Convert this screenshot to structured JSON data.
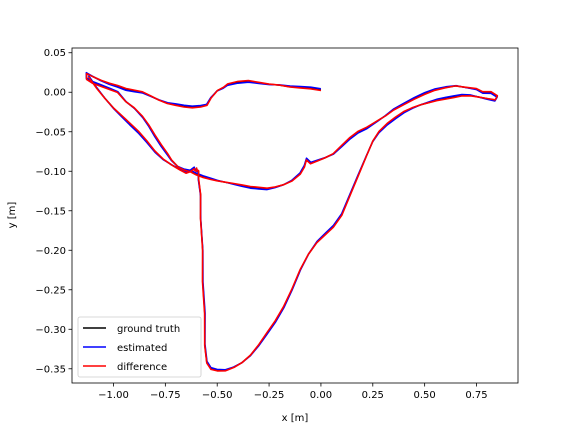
{
  "chart_data": {
    "type": "line",
    "xlabel": "x [m]",
    "ylabel": "y [m]",
    "xlim": [
      -1.2,
      0.95
    ],
    "ylim": [
      -0.368,
      0.056
    ],
    "xticks": [
      -1.0,
      -0.75,
      -0.5,
      -0.25,
      0.0,
      0.25,
      0.5,
      0.75
    ],
    "xtick_labels": [
      "−1.00",
      "−0.75",
      "−0.50",
      "−0.25",
      "0.00",
      "0.25",
      "0.50",
      "0.75"
    ],
    "yticks": [
      0.05,
      0.0,
      -0.05,
      -0.1,
      -0.15,
      -0.2,
      -0.25,
      -0.3,
      -0.35
    ],
    "ytick_labels": [
      "0.05",
      "0.00",
      "−0.05",
      "−0.10",
      "−0.15",
      "−0.20",
      "−0.25",
      "−0.30",
      "−0.35"
    ],
    "grid": false,
    "legend_position": "lower-left",
    "series": [
      {
        "name": "ground truth",
        "color": "#000000"
      },
      {
        "name": "estimated",
        "color": "#0000ff"
      },
      {
        "name": "difference",
        "color": "#ff0000"
      }
    ],
    "trajectory": {
      "x": [
        0.0,
        -0.05,
        -0.1,
        -0.15,
        -0.2,
        -0.25,
        -0.3,
        -0.35,
        -0.4,
        -0.45,
        -0.47,
        -0.5,
        -0.53,
        -0.55,
        -0.58,
        -0.62,
        -0.66,
        -0.7,
        -0.74,
        -0.78,
        -0.82,
        -0.86,
        -0.9,
        -0.94,
        -0.98,
        -1.02,
        -1.06,
        -1.1,
        -1.13,
        -1.13,
        -1.1,
        -1.06,
        -1.02,
        -0.98,
        -0.94,
        -0.9,
        -0.86,
        -0.83,
        -0.8,
        -0.77,
        -0.74,
        -0.72,
        -0.69,
        -0.66,
        -0.63,
        -0.6,
        -0.57,
        -0.53,
        -0.5,
        -0.46,
        -0.42,
        -0.38,
        -0.34,
        -0.3,
        -0.26,
        -0.22,
        -0.18,
        -0.14,
        -0.1,
        -0.08,
        -0.07,
        -0.05,
        -0.02,
        0.02,
        0.06,
        0.1,
        0.14,
        0.18,
        0.22,
        0.25,
        0.28,
        0.31,
        0.35,
        0.4,
        0.45,
        0.5,
        0.55,
        0.6,
        0.65,
        0.7,
        0.75,
        0.78,
        0.82,
        0.85,
        0.84,
        0.8,
        0.76,
        0.72,
        0.68,
        0.64,
        0.6,
        0.56,
        0.52,
        0.48,
        0.44,
        0.4,
        0.36,
        0.32,
        0.28,
        0.25,
        0.22,
        0.18,
        0.14,
        0.1,
        0.06,
        0.02,
        -0.02,
        -0.06,
        -0.1,
        -0.14,
        -0.18,
        -0.22,
        -0.26,
        -0.3,
        -0.34,
        -0.38,
        -0.42,
        -0.46,
        -0.5,
        -0.53,
        -0.55,
        -0.56,
        -0.56,
        -0.57,
        -0.57,
        -0.58,
        -0.58,
        -0.59,
        -0.59,
        -0.6,
        -0.6,
        -0.6,
        -0.61,
        -0.61,
        -0.62,
        -0.63,
        -0.65,
        -0.68,
        -0.72,
        -0.76,
        -0.8,
        -0.84,
        -0.88,
        -0.92,
        -0.96,
        -1.0,
        -1.04,
        -1.08,
        -1.12
      ],
      "y": [
        0.003,
        0.005,
        0.006,
        0.007,
        0.009,
        0.01,
        0.012,
        0.014,
        0.013,
        0.01,
        0.006,
        0.002,
        -0.007,
        -0.016,
        -0.018,
        -0.019,
        -0.018,
        -0.016,
        -0.014,
        -0.01,
        -0.005,
        0.0,
        0.002,
        0.004,
        0.008,
        0.011,
        0.015,
        0.02,
        0.024,
        0.017,
        0.012,
        0.008,
        0.004,
        0.0,
        -0.012,
        -0.02,
        -0.031,
        -0.042,
        -0.055,
        -0.067,
        -0.078,
        -0.086,
        -0.094,
        -0.098,
        -0.1,
        -0.104,
        -0.107,
        -0.11,
        -0.112,
        -0.114,
        -0.116,
        -0.118,
        -0.12,
        -0.121,
        -0.122,
        -0.12,
        -0.117,
        -0.112,
        -0.103,
        -0.094,
        -0.085,
        -0.09,
        -0.087,
        -0.083,
        -0.078,
        -0.068,
        -0.058,
        -0.05,
        -0.045,
        -0.04,
        -0.035,
        -0.03,
        -0.022,
        -0.015,
        -0.008,
        -0.002,
        0.003,
        0.006,
        0.008,
        0.006,
        0.004,
        0.0,
        0.0,
        -0.005,
        -0.01,
        -0.008,
        -0.006,
        -0.004,
        -0.004,
        -0.006,
        -0.008,
        -0.01,
        -0.013,
        -0.016,
        -0.02,
        -0.025,
        -0.032,
        -0.04,
        -0.05,
        -0.062,
        -0.08,
        -0.105,
        -0.13,
        -0.155,
        -0.17,
        -0.18,
        -0.19,
        -0.205,
        -0.225,
        -0.25,
        -0.272,
        -0.29,
        -0.305,
        -0.32,
        -0.333,
        -0.342,
        -0.348,
        -0.352,
        -0.352,
        -0.35,
        -0.342,
        -0.32,
        -0.28,
        -0.24,
        -0.2,
        -0.16,
        -0.13,
        -0.11,
        -0.1,
        -0.098,
        -0.096,
        -0.1,
        -0.098,
        -0.096,
        -0.098,
        -0.1,
        -0.102,
        -0.098,
        -0.092,
        -0.085,
        -0.075,
        -0.062,
        -0.05,
        -0.04,
        -0.03,
        -0.02,
        -0.008,
        0.005,
        0.02
      ]
    }
  }
}
